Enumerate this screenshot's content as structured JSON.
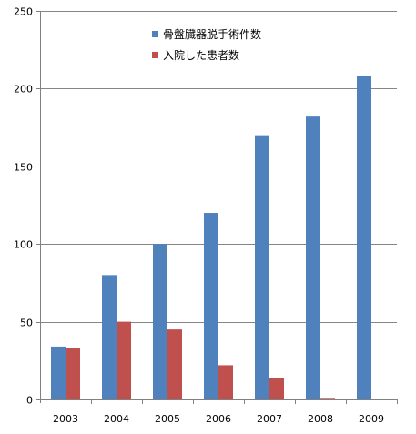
{
  "chart_data": {
    "type": "bar",
    "categories": [
      "2003",
      "2004",
      "2005",
      "2006",
      "2007",
      "2008",
      "2009"
    ],
    "series": [
      {
        "name": "骨盤臓器脱手術件数",
        "color": "#4F81BD",
        "values": [
          34,
          80,
          100,
          120,
          170,
          182,
          208
        ]
      },
      {
        "name": "入院した患者数",
        "color": "#C0504D",
        "values": [
          33,
          50,
          45,
          22,
          14,
          1,
          0
        ]
      }
    ],
    "ylim": [
      0,
      250
    ],
    "yticks": [
      0,
      50,
      100,
      150,
      200,
      250
    ],
    "grid": true,
    "legend_position": "top-center",
    "title": "",
    "xlabel": "",
    "ylabel": ""
  }
}
